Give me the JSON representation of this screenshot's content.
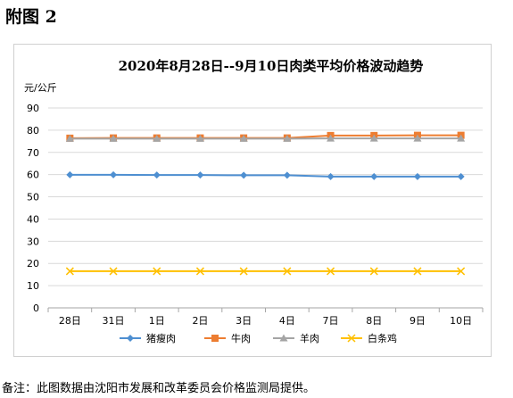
{
  "heading": "附图 2",
  "note": "备注：此图数据由沈阳市发展和改革委员会价格监测局提供。",
  "chart_data": {
    "type": "line",
    "title": "2020年8月28日--9月10日肉类平均价格波动趋势",
    "ylabel": "元/公斤",
    "xlabel": "",
    "categories": [
      "28日",
      "31日",
      "1日",
      "2日",
      "3日",
      "4日",
      "7日",
      "8日",
      "9日",
      "10日"
    ],
    "ylim": [
      0,
      90
    ],
    "yticks": [
      0,
      10,
      20,
      30,
      40,
      50,
      60,
      70,
      80,
      90
    ],
    "grid": true,
    "legend": "bottom",
    "series": [
      {
        "name": "猪瘦肉",
        "color": "#4e8fd1",
        "marker": "diamond",
        "values": [
          59.9,
          59.9,
          59.8,
          59.8,
          59.7,
          59.7,
          59.1,
          59.1,
          59.1,
          59.1
        ]
      },
      {
        "name": "牛肉",
        "color": "#ed7d31",
        "marker": "square",
        "values": [
          76.4,
          76.5,
          76.5,
          76.5,
          76.5,
          76.5,
          77.6,
          77.6,
          77.7,
          77.7
        ]
      },
      {
        "name": "羊肉",
        "color": "#a5a5a5",
        "marker": "triangle",
        "values": [
          76.2,
          76.2,
          76.2,
          76.2,
          76.2,
          76.2,
          76.3,
          76.3,
          76.3,
          76.3
        ]
      },
      {
        "name": "白条鸡",
        "color": "#ffc000",
        "marker": "x",
        "values": [
          16.5,
          16.5,
          16.5,
          16.5,
          16.5,
          16.5,
          16.5,
          16.5,
          16.5,
          16.5
        ]
      }
    ]
  }
}
